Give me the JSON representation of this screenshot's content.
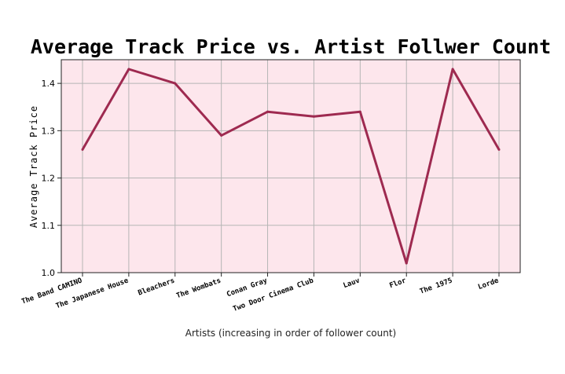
{
  "chart_data": {
    "type": "line",
    "title": "Average Track Price vs. Artist Follwer Count",
    "xlabel": "Artists (increasing in order of follower count)",
    "ylabel": "Average Track Price",
    "categories": [
      "The Band CAMINO",
      "The Japanese House",
      "Bleachers",
      "The Wombats",
      "Conan Gray",
      "Two Door Cinema Club",
      "Lauv",
      "Flor",
      "The 1975",
      "Lorde"
    ],
    "values": [
      1.26,
      1.43,
      1.4,
      1.29,
      1.34,
      1.33,
      1.34,
      1.02,
      1.43,
      1.26
    ],
    "yticks": [
      "1.0",
      "1.1",
      "1.2",
      "1.3",
      "1.4"
    ],
    "ylim": [
      1.0,
      1.45
    ],
    "grid": true,
    "colors": {
      "line": "#9e2a50",
      "plot_bg": "#fde6ec",
      "grid": "#b5b5b5"
    }
  }
}
